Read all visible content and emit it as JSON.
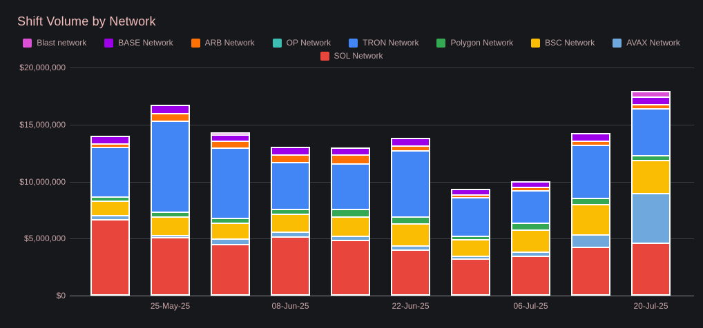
{
  "title": "Shift Volume by Network",
  "colors": {
    "background": "#17181c",
    "title_text": "#f0bcbc",
    "axis_text": "#c9a7a8",
    "legend_text": "#bda4a4",
    "gridline": "#3d4046",
    "zero_axis_line": "#8a8d92",
    "bar_outline": "#ffffff"
  },
  "legend": {
    "row1": [
      "Blast network",
      "BASE Network",
      "ARB Network",
      "OP Network",
      "TRON Network",
      "Polygon Network",
      "BSC Network",
      "AVAX Network"
    ],
    "row2": [
      "SOL Network"
    ]
  },
  "chart_data": {
    "type": "bar",
    "stacked": true,
    "title": "Shift Volume by Network",
    "xlabel": "",
    "ylabel": "",
    "ylim": [
      0,
      20000000
    ],
    "grid": true,
    "legend_position": "top-center",
    "y_ticks": [
      {
        "label": "$0",
        "value": 0
      },
      {
        "label": "$5,000,000",
        "value": 5000000
      },
      {
        "label": "$10,000,000",
        "value": 10000000
      },
      {
        "label": "$15,000,000",
        "value": 15000000
      },
      {
        "label": "$20,000,000",
        "value": 20000000
      }
    ],
    "x_tick_labels": [
      "",
      "25-May-25",
      "",
      "08-Jun-25",
      "",
      "22-Jun-25",
      "",
      "06-Jul-25",
      "",
      "20-Jul-25"
    ],
    "legend_order": [
      "Blast network",
      "BASE Network",
      "ARB Network",
      "OP Network",
      "TRON Network",
      "Polygon Network",
      "BSC Network",
      "AVAX Network",
      "SOL Network"
    ],
    "series": [
      {
        "name": "SOL Network",
        "color": "#e8453c",
        "values": [
          6600000,
          5000000,
          4400000,
          5100000,
          4750000,
          3900000,
          3150000,
          3350000,
          4150000,
          4500000
        ]
      },
      {
        "name": "AVAX Network",
        "color": "#6fa8dc",
        "values": [
          350000,
          200000,
          500000,
          400000,
          400000,
          400000,
          250000,
          400000,
          1100000,
          4400000
        ]
      },
      {
        "name": "BSC Network",
        "color": "#fbbc04",
        "values": [
          1250000,
          1650000,
          1400000,
          1550000,
          1700000,
          1950000,
          1450000,
          1950000,
          2650000,
          2900000
        ]
      },
      {
        "name": "Polygon Network",
        "color": "#34a853",
        "values": [
          400000,
          400000,
          400000,
          450000,
          650000,
          600000,
          300000,
          600000,
          550000,
          400000
        ]
      },
      {
        "name": "TRON Network",
        "color": "#4285f4",
        "values": [
          4350000,
          8000000,
          6150000,
          4100000,
          4000000,
          5800000,
          3350000,
          2800000,
          4650000,
          4100000
        ]
      },
      {
        "name": "OP Network",
        "color": "#3dbdb2",
        "values": [
          0,
          0,
          0,
          0,
          0,
          0,
          0,
          0,
          0,
          0
        ]
      },
      {
        "name": "ARB Network",
        "color": "#ff7104",
        "values": [
          300000,
          650000,
          600000,
          650000,
          750000,
          400000,
          250000,
          300000,
          350000,
          400000
        ]
      },
      {
        "name": "BASE Network",
        "color": "#9d00e8",
        "values": [
          550000,
          600000,
          550000,
          550000,
          500000,
          550000,
          400000,
          400000,
          550000,
          650000
        ]
      },
      {
        "name": "Blast network",
        "color": "#da4fd4",
        "values": [
          0,
          0,
          100000,
          0,
          0,
          0,
          0,
          0,
          0,
          350000
        ]
      }
    ]
  }
}
